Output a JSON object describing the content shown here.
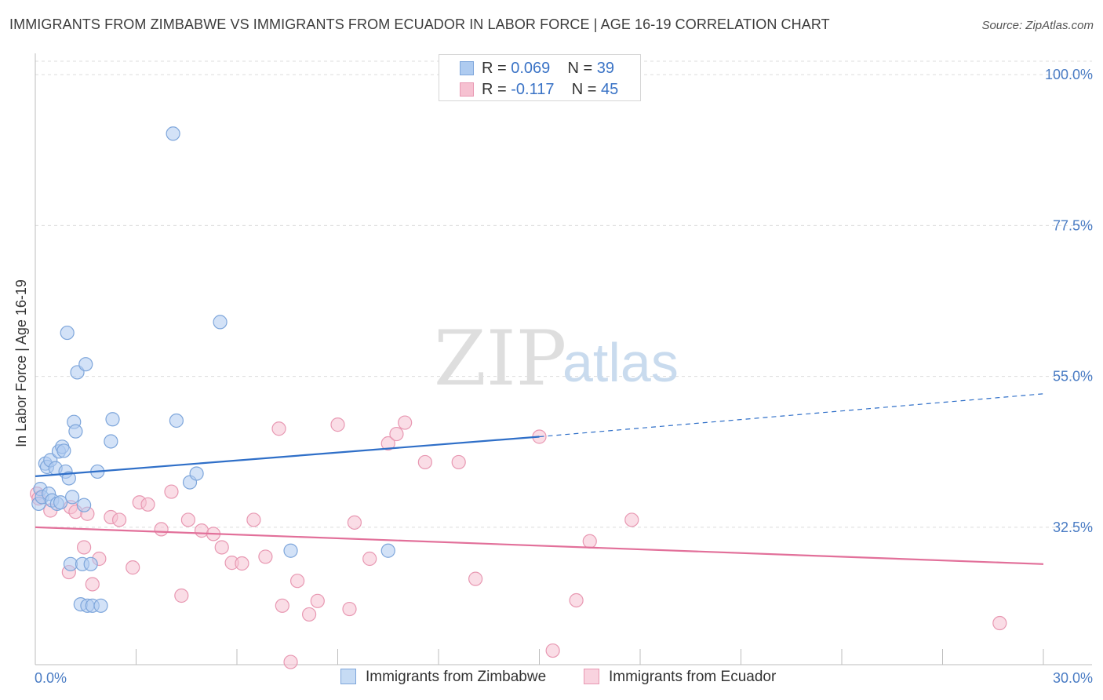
{
  "title": "IMMIGRANTS FROM ZIMBABWE VS IMMIGRANTS FROM ECUADOR IN LABOR FORCE | AGE 16-19 CORRELATION CHART",
  "source": "Source: ZipAtlas.com",
  "watermark": {
    "zip": "ZIP",
    "atlas": "atlas"
  },
  "legend": {
    "series1": {
      "r_label": "R =",
      "r_value": "0.069",
      "n_label": "N =",
      "n_value": "39"
    },
    "series2": {
      "r_label": "R =",
      "r_value": "-0.117",
      "n_label": "N =",
      "n_value": "45"
    }
  },
  "colors": {
    "blue_fill": "#aecbf0",
    "blue_stroke": "#7ea6db",
    "blue_line": "#2f6fc8",
    "pink_fill": "#f6c1d1",
    "pink_stroke": "#e898b2",
    "pink_line": "#e2709a",
    "grid": "#dcdcdc",
    "axis": "#bdbdbd"
  },
  "chart_data": {
    "type": "scatter",
    "title": "IMMIGRANTS FROM ZIMBABWE VS IMMIGRANTS FROM ECUADOR IN LABOR FORCE | AGE 16-19 CORRELATION CHART",
    "xlabel": "",
    "ylabel": "In Labor Force | Age 16-19",
    "xlim": [
      0,
      30
    ],
    "ylim": [
      12,
      102
    ],
    "x_tick_labels": [
      {
        "value": 0,
        "label": "0.0%"
      },
      {
        "value": 30,
        "label": "30.0%"
      }
    ],
    "y_tick_labels": [
      {
        "value": 100,
        "label": "100.0%"
      },
      {
        "value": 77.5,
        "label": "77.5%"
      },
      {
        "value": 55,
        "label": "55.0%"
      },
      {
        "value": 32.5,
        "label": "32.5%"
      }
    ],
    "x_minor_ticks": [
      0,
      3,
      6,
      9,
      12,
      15,
      18,
      21,
      24,
      27,
      30
    ],
    "series": [
      {
        "name": "Immigrants from Zimbabwe",
        "color": "blue",
        "trend": {
          "x_start": 0,
          "y_start": 40.1,
          "x_solid_end": 15,
          "y_solid_end": 46.0,
          "x_end": 30,
          "y_end": 52.4
        },
        "points": [
          [
            0.1,
            36.0
          ],
          [
            0.15,
            38.2
          ],
          [
            0.2,
            37.0
          ],
          [
            0.3,
            42.0
          ],
          [
            0.35,
            41.5
          ],
          [
            0.4,
            37.5
          ],
          [
            0.45,
            42.5
          ],
          [
            0.5,
            36.5
          ],
          [
            0.6,
            41.3
          ],
          [
            0.65,
            36.0
          ],
          [
            0.7,
            43.8
          ],
          [
            0.75,
            36.2
          ],
          [
            0.8,
            44.5
          ],
          [
            0.85,
            43.9
          ],
          [
            0.9,
            40.8
          ],
          [
            0.95,
            61.5
          ],
          [
            1.0,
            39.8
          ],
          [
            1.05,
            27.0
          ],
          [
            1.1,
            37.0
          ],
          [
            1.15,
            48.2
          ],
          [
            1.2,
            46.8
          ],
          [
            1.25,
            55.6
          ],
          [
            1.35,
            21.0
          ],
          [
            1.4,
            27.0
          ],
          [
            1.45,
            35.8
          ],
          [
            1.5,
            56.8
          ],
          [
            1.55,
            20.8
          ],
          [
            1.65,
            27.0
          ],
          [
            1.7,
            20.8
          ],
          [
            1.85,
            40.8
          ],
          [
            1.95,
            20.8
          ],
          [
            2.25,
            45.3
          ],
          [
            2.3,
            48.6
          ],
          [
            4.1,
            91.2
          ],
          [
            4.2,
            48.4
          ],
          [
            4.6,
            39.2
          ],
          [
            4.8,
            40.5
          ],
          [
            5.5,
            63.1
          ],
          [
            7.6,
            29.0
          ],
          [
            10.5,
            29.0
          ]
        ]
      },
      {
        "name": "Immigrants from Ecuador",
        "color": "pink",
        "trend": {
          "x_start": 0,
          "y_start": 32.5,
          "x_end": 30,
          "y_end": 27.0
        },
        "points": [
          [
            0.05,
            37.5
          ],
          [
            0.1,
            36.8
          ],
          [
            0.45,
            35.0
          ],
          [
            1.05,
            35.5
          ],
          [
            1.0,
            25.8
          ],
          [
            1.2,
            34.8
          ],
          [
            1.45,
            29.5
          ],
          [
            1.55,
            34.5
          ],
          [
            1.7,
            24.0
          ],
          [
            1.9,
            27.8
          ],
          [
            2.25,
            34.0
          ],
          [
            2.5,
            33.6
          ],
          [
            2.9,
            26.5
          ],
          [
            3.1,
            36.2
          ],
          [
            3.35,
            35.9
          ],
          [
            3.75,
            32.2
          ],
          [
            4.05,
            37.8
          ],
          [
            4.35,
            22.3
          ],
          [
            4.55,
            33.6
          ],
          [
            4.95,
            32.0
          ],
          [
            5.3,
            31.5
          ],
          [
            5.55,
            29.5
          ],
          [
            5.85,
            27.2
          ],
          [
            6.15,
            27.1
          ],
          [
            6.5,
            33.6
          ],
          [
            6.85,
            28.1
          ],
          [
            7.25,
            47.2
          ],
          [
            7.35,
            20.8
          ],
          [
            7.6,
            12.4
          ],
          [
            7.8,
            24.5
          ],
          [
            8.15,
            19.5
          ],
          [
            8.4,
            21.5
          ],
          [
            9.0,
            47.8
          ],
          [
            9.35,
            20.3
          ],
          [
            9.5,
            33.2
          ],
          [
            9.95,
            27.8
          ],
          [
            10.5,
            45.0
          ],
          [
            10.75,
            46.4
          ],
          [
            11.0,
            48.1
          ],
          [
            11.6,
            42.2
          ],
          [
            12.6,
            42.2
          ],
          [
            13.1,
            24.8
          ],
          [
            15.0,
            46.0
          ],
          [
            15.4,
            14.1
          ],
          [
            16.1,
            21.6
          ],
          [
            16.5,
            30.4
          ],
          [
            17.75,
            33.6
          ],
          [
            28.7,
            18.2
          ]
        ]
      }
    ]
  },
  "bottom_legend": {
    "item1": "Immigrants from Zimbabwe",
    "item2": "Immigrants from Ecuador"
  }
}
